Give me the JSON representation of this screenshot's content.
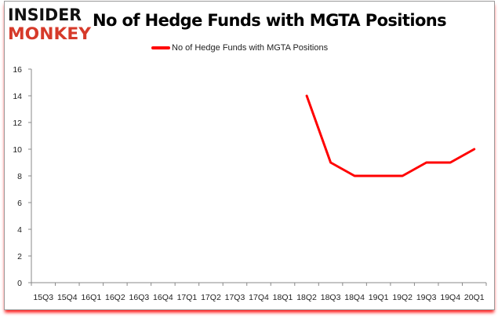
{
  "logo": {
    "line1": "INSIDER",
    "line2": "MONKEY"
  },
  "chart_data": {
    "type": "line",
    "title": "No of Hedge Funds with MGTA Positions",
    "xlabel": "",
    "ylabel": "",
    "categories": [
      "15Q3",
      "15Q4",
      "16Q1",
      "16Q2",
      "16Q3",
      "16Q4",
      "17Q1",
      "17Q2",
      "17Q3",
      "17Q4",
      "18Q1",
      "18Q2",
      "18Q3",
      "18Q4",
      "19Q1",
      "19Q2",
      "19Q3",
      "19Q4",
      "20Q1"
    ],
    "series": [
      {
        "name": "No of Hedge Funds with MGTA Positions",
        "color": "#ff0000",
        "values": [
          null,
          null,
          null,
          null,
          null,
          null,
          null,
          null,
          null,
          null,
          null,
          14,
          9,
          8,
          8,
          8,
          9,
          9,
          10
        ]
      }
    ],
    "ylim": [
      0,
      16
    ],
    "yticks": [
      0,
      2,
      4,
      6,
      8,
      10,
      12,
      14,
      16
    ],
    "grid": false,
    "legend": "top-center"
  }
}
